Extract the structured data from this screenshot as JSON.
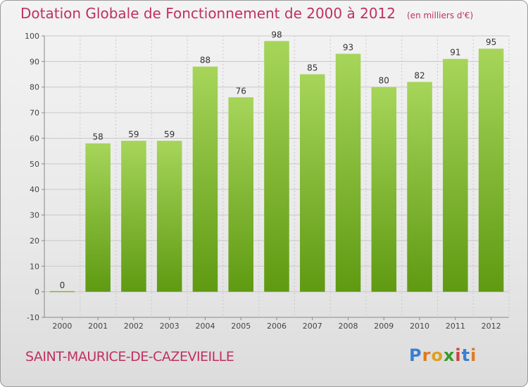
{
  "chart_data": {
    "type": "bar",
    "title": "Dotation Globale de Fonctionnement de 2000 à 2012",
    "subtitle": "(en milliers d'€)",
    "categories": [
      "2000",
      "2001",
      "2002",
      "2003",
      "2004",
      "2005",
      "2006",
      "2007",
      "2008",
      "2009",
      "2010",
      "2011",
      "2012"
    ],
    "values": [
      0,
      58,
      59,
      59,
      88,
      76,
      98,
      85,
      93,
      80,
      82,
      91,
      95
    ],
    "value_labels": [
      "0",
      "58",
      "59",
      "59",
      "88",
      "76",
      "98",
      "85",
      "93",
      "80",
      "82",
      "91",
      "95"
    ],
    "ylim": [
      -10,
      100
    ],
    "yticks": [
      -10,
      0,
      10,
      20,
      30,
      40,
      50,
      60,
      70,
      80,
      90,
      100
    ],
    "ytick_labels": [
      "-10",
      "0",
      "10",
      "20",
      "30",
      "40",
      "50",
      "60",
      "70",
      "80",
      "90",
      "100"
    ],
    "grid": true,
    "xlabel": "",
    "ylabel": "",
    "bar_color_top": "#a6d55a",
    "bar_color_bottom": "#5f9a12"
  },
  "footer": {
    "commune": "SAINT-MAURICE-DE-CAZEVIEILLE"
  },
  "logo": {
    "letters": [
      "P",
      "r",
      "o",
      "x",
      "i",
      "t",
      "i"
    ],
    "colors": [
      "#3a7fd0",
      "#e07a20",
      "#e0a020",
      "#3a9a2a",
      "#d04040",
      "#3a7fd0",
      "#e07a20"
    ]
  },
  "colors": {
    "title": "#c03060",
    "grid": "#c8c8c8"
  }
}
